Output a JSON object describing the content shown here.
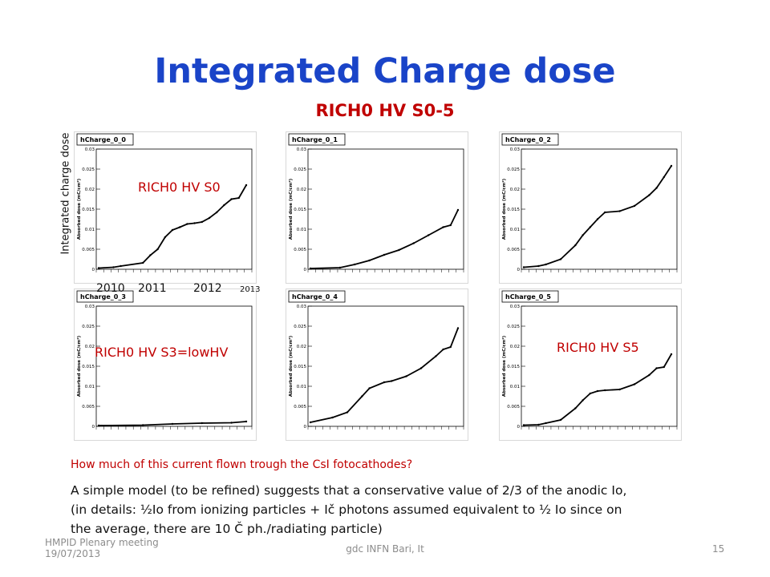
{
  "slide": {
    "title": "Integrated Charge dose",
    "subtitle": "RICH0 HV S0-5",
    "side_ylabel": "Integrated charge dose",
    "overlays": {
      "s0": "RICH0 HV S0",
      "s3": "RICH0 HV S3=lowHV",
      "s5": "RICH0 HV S5"
    },
    "years": {
      "y2010": "2010",
      "y2011": "2011",
      "y2012": "2012",
      "y2013": "2013"
    },
    "note_question": "How much of this current flown trough the CsI fotocathodes?",
    "note_line1": " A simple model (to be refined) suggests that a conservative value of 2/3 of the anodic Io,",
    "note_line2": "(in details: ½Io from ionizing particles + Ič photons assumed equivalent to ½ Io since on",
    "note_line3": "the average, there are 10 Č ph./radiating particle)",
    "footer_left1": "HMPID Plenary meeting",
    "footer_left2": "19/07/2013",
    "footer_center": "gdc INFN Bari, It",
    "footer_page": "15"
  },
  "chart_data": [
    {
      "type": "line",
      "title": "hCharge_0_0",
      "ylabel": "Absorbed dose (mC/cm²)",
      "ylim": [
        0,
        0.03
      ],
      "yticks": [
        "0",
        "0.005",
        "0.01",
        "0.015",
        "0.02",
        "0.025",
        "0.03"
      ],
      "x": [
        0,
        0.1,
        0.15,
        0.3,
        0.35,
        0.4,
        0.45,
        0.5,
        0.55,
        0.6,
        0.65,
        0.7,
        0.75,
        0.8,
        0.85,
        0.9,
        0.95,
        1.0
      ],
      "values": [
        0.0003,
        0.0005,
        0.0008,
        0.0016,
        0.0035,
        0.005,
        0.008,
        0.0098,
        0.0105,
        0.0113,
        0.0115,
        0.0118,
        0.0128,
        0.0142,
        0.016,
        0.0175,
        0.0178,
        0.021
      ]
    },
    {
      "type": "line",
      "title": "hCharge_0_1",
      "ylabel": "Absorbed dose (mC/cm²)",
      "ylim": [
        0,
        0.03
      ],
      "yticks": [
        "0",
        "0.005",
        "0.01",
        "0.015",
        "0.02",
        "0.025",
        "0.03"
      ],
      "x": [
        0,
        0.2,
        0.3,
        0.4,
        0.5,
        0.6,
        0.7,
        0.8,
        0.9,
        0.95,
        1.0
      ],
      "values": [
        0.0002,
        0.0004,
        0.0012,
        0.0022,
        0.0036,
        0.0048,
        0.0065,
        0.0085,
        0.0105,
        0.011,
        0.0148
      ]
    },
    {
      "type": "line",
      "title": "hCharge_0_2",
      "ylabel": "Absorbed dose (mC/cm²)",
      "ylim": [
        0,
        0.03
      ],
      "yticks": [
        "0",
        "0.005",
        "0.01",
        "0.015",
        "0.02",
        "0.025",
        "0.03"
      ],
      "x": [
        0,
        0.1,
        0.15,
        0.25,
        0.35,
        0.4,
        0.45,
        0.5,
        0.55,
        0.65,
        0.75,
        0.85,
        0.9,
        0.95,
        1.0
      ],
      "values": [
        0.0005,
        0.0008,
        0.0012,
        0.0025,
        0.006,
        0.0085,
        0.0105,
        0.0125,
        0.0142,
        0.0145,
        0.0158,
        0.0185,
        0.0203,
        0.023,
        0.0258
      ]
    },
    {
      "type": "line",
      "title": "hCharge_0_3",
      "ylabel": "Absorbed dose (mC/cm²)",
      "ylim": [
        0,
        0.03
      ],
      "yticks": [
        "0",
        "0.005",
        "0.01",
        "0.015",
        "0.02",
        "0.025",
        "0.03"
      ],
      "x": [
        0,
        0.3,
        0.5,
        0.7,
        0.9,
        1.0
      ],
      "values": [
        0.0002,
        0.0003,
        0.0006,
        0.0008,
        0.0009,
        0.0012
      ]
    },
    {
      "type": "line",
      "title": "hCharge_0_4",
      "ylabel": "Absorbed dose (mC/cm²)",
      "ylim": [
        0,
        0.03
      ],
      "yticks": [
        "0",
        "0.005",
        "0.01",
        "0.015",
        "0.02",
        "0.025",
        "0.03"
      ],
      "x": [
        0,
        0.15,
        0.25,
        0.35,
        0.4,
        0.5,
        0.55,
        0.65,
        0.75,
        0.85,
        0.9,
        0.95,
        1.0
      ],
      "values": [
        0.001,
        0.0022,
        0.0035,
        0.0075,
        0.0095,
        0.011,
        0.0113,
        0.0125,
        0.0145,
        0.0175,
        0.0192,
        0.0198,
        0.0245
      ]
    },
    {
      "type": "line",
      "title": "hCharge_0_5",
      "ylabel": "Absorbed dose (mC/cm²)",
      "ylim": [
        0,
        0.03
      ],
      "yticks": [
        "0",
        "0.005",
        "0.01",
        "0.015",
        "0.02",
        "0.025",
        "0.03"
      ],
      "x": [
        0,
        0.1,
        0.15,
        0.25,
        0.35,
        0.4,
        0.45,
        0.5,
        0.55,
        0.65,
        0.75,
        0.85,
        0.9,
        0.95,
        1.0
      ],
      "values": [
        0.0003,
        0.0004,
        0.0008,
        0.0016,
        0.0045,
        0.0065,
        0.0082,
        0.0088,
        0.009,
        0.0092,
        0.0105,
        0.0128,
        0.0145,
        0.0148,
        0.018
      ]
    }
  ]
}
